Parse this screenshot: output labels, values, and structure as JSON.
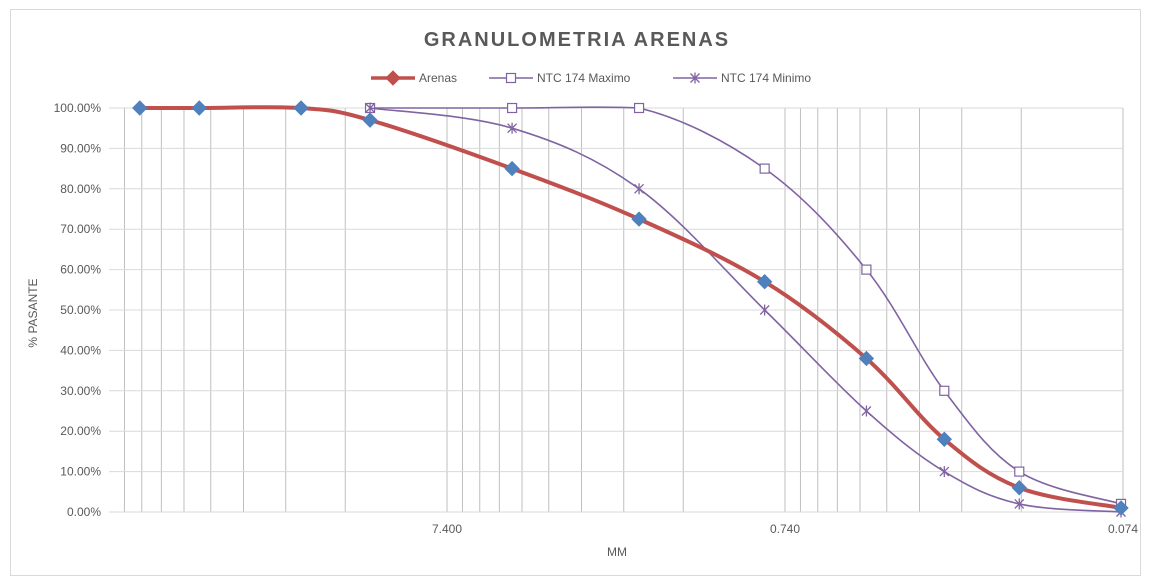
{
  "chart_data": {
    "type": "line",
    "title": "GRANULOMETRIA ARENAS",
    "xlabel": "MM",
    "ylabel": "% PASANTE",
    "x_scale": "log",
    "x_reversed": true,
    "xlim": [
      74,
      0.074
    ],
    "ylim": [
      0,
      1
    ],
    "y_ticks": [
      "0.00%",
      "10.00%",
      "20.00%",
      "30.00%",
      "40.00%",
      "50.00%",
      "60.00%",
      "70.00%",
      "80.00%",
      "90.00%",
      "100.00%"
    ],
    "x_ticks": [
      "7.400",
      "0.740",
      "0.074"
    ],
    "grid": true,
    "legend_position": "top",
    "series": [
      {
        "name": "Arenas",
        "color": "#c0504d",
        "marker": "diamond",
        "marker_color": "#4f81bd",
        "x": [
          60,
          40,
          20,
          12.5,
          4.75,
          2.0,
          0.85,
          0.425,
          0.25,
          0.15,
          0.075
        ],
        "y": [
          1.0,
          1.0,
          1.0,
          0.97,
          0.85,
          0.725,
          0.57,
          0.38,
          0.18,
          0.06,
          0.01
        ]
      },
      {
        "name": "NTC 174 Maximo",
        "color": "#8064a2",
        "marker": "square",
        "x": [
          12.5,
          4.75,
          2.0,
          0.85,
          0.425,
          0.25,
          0.15,
          0.075
        ],
        "y": [
          1.0,
          1.0,
          1.0,
          0.85,
          0.6,
          0.3,
          0.1,
          0.02
        ]
      },
      {
        "name": "NTC 174 Minimo",
        "color": "#8064a2",
        "marker": "star",
        "x": [
          12.5,
          4.75,
          2.0,
          0.85,
          0.425,
          0.25,
          0.15,
          0.075
        ],
        "y": [
          1.0,
          0.95,
          0.8,
          0.5,
          0.25,
          0.1,
          0.02,
          0.0
        ]
      }
    ]
  }
}
